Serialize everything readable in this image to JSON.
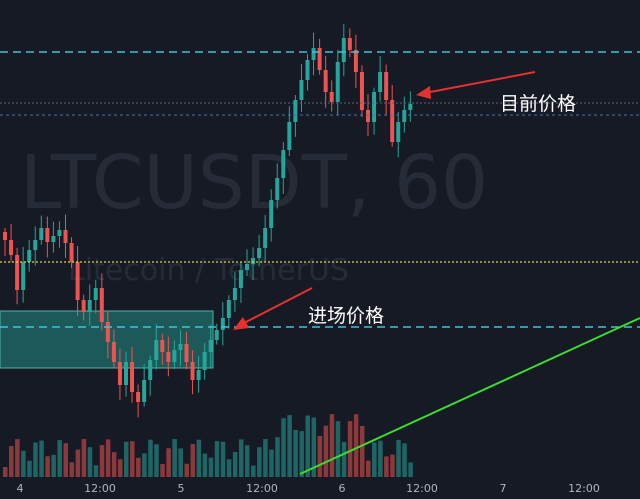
{
  "watermark": {
    "symbol": "LTCUSDT, 60",
    "description": "Litecoin / TetherUS"
  },
  "annotations": {
    "current_price": "目前价格",
    "entry_price": "进场价格"
  },
  "time_axis": [
    "4",
    "12:00",
    "5",
    "12:00",
    "6",
    "12:00",
    "7",
    "12:00"
  ]
}
